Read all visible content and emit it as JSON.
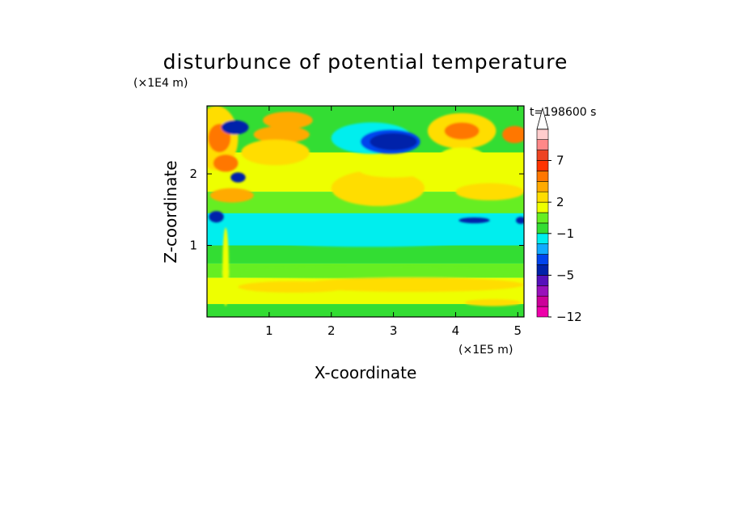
{
  "chart_data": {
    "type": "heatmap",
    "title": "disturbunce of potential temperature",
    "xlabel": "X-coordinate",
    "ylabel": "Z-coordinate",
    "x_unit": "(×1E5 m)",
    "y_unit": "(×1E4 m)",
    "time_label": "t=198600 s",
    "x_ticks": [
      1,
      2,
      3,
      4,
      5
    ],
    "y_ticks": [
      1,
      2
    ],
    "xlim": [
      0,
      5.1
    ],
    "ylim": [
      0,
      2.95
    ],
    "colorbar": {
      "tick_labels": [
        "7",
        "2",
        "−1",
        "−5",
        "−12"
      ],
      "levels": [
        -12,
        -10,
        -8,
        -7,
        -5,
        -4,
        -3,
        -2,
        -1,
        0,
        1,
        2,
        3,
        4,
        5,
        7,
        8,
        9
      ],
      "colors": [
        "#ee00aa",
        "#cc0099",
        "#9911bb",
        "#5511bb",
        "#0022aa",
        "#0044ee",
        "#11aaff",
        "#00eeee",
        "#33dd33",
        "#66ee22",
        "#eeff00",
        "#ffdd00",
        "#ffaa00",
        "#ff7700",
        "#ff3300",
        "#ee4422",
        "#ff8888",
        "#ffcccc"
      ],
      "extend": "max"
    },
    "colors": {
      "frame": "#000000",
      "background": "#00eeee"
    },
    "bands": [
      {
        "z0": 0.0,
        "z1": 0.18,
        "color": "#33dd33"
      },
      {
        "z0": 0.18,
        "z1": 0.55,
        "color": "#eeff00"
      },
      {
        "z0": 0.55,
        "z1": 0.75,
        "color": "#66ee22"
      },
      {
        "z0": 0.75,
        "z1": 1.0,
        "color": "#33dd33"
      },
      {
        "z0": 1.0,
        "z1": 1.45,
        "color": "#00eeee"
      },
      {
        "z0": 1.45,
        "z1": 1.75,
        "color": "#66ee22"
      },
      {
        "z0": 1.75,
        "z1": 2.3,
        "color": "#eeff00"
      },
      {
        "z0": 2.3,
        "z1": 2.95,
        "color": "#33dd33"
      }
    ],
    "blobs": [
      {
        "x": 0.15,
        "z": 2.5,
        "rx": 0.35,
        "rz": 0.45,
        "color": "#ffdd00"
      },
      {
        "x": 0.2,
        "z": 2.5,
        "rx": 0.18,
        "rz": 0.2,
        "color": "#ff7700"
      },
      {
        "x": 0.45,
        "z": 2.65,
        "rx": 0.22,
        "rz": 0.1,
        "color": "#0022aa"
      },
      {
        "x": 0.3,
        "z": 2.15,
        "rx": 0.2,
        "rz": 0.12,
        "color": "#ff7700"
      },
      {
        "x": 0.5,
        "z": 1.95,
        "rx": 0.12,
        "rz": 0.07,
        "color": "#0022aa"
      },
      {
        "x": 0.4,
        "z": 1.7,
        "rx": 0.35,
        "rz": 0.1,
        "color": "#ffaa00"
      },
      {
        "x": 1.2,
        "z": 2.55,
        "rx": 0.45,
        "rz": 0.12,
        "color": "#ffaa00"
      },
      {
        "x": 1.1,
        "z": 2.3,
        "rx": 0.55,
        "rz": 0.18,
        "color": "#ffdd00"
      },
      {
        "x": 1.3,
        "z": 2.75,
        "rx": 0.4,
        "rz": 0.12,
        "color": "#ffaa00"
      },
      {
        "x": 2.65,
        "z": 2.5,
        "rx": 0.65,
        "rz": 0.22,
        "color": "#00eeee"
      },
      {
        "x": 2.95,
        "z": 2.45,
        "rx": 0.48,
        "rz": 0.17,
        "color": "#0044ee"
      },
      {
        "x": 3.0,
        "z": 2.45,
        "rx": 0.38,
        "rz": 0.12,
        "color": "#0022aa"
      },
      {
        "x": 2.75,
        "z": 1.8,
        "rx": 0.75,
        "rz": 0.25,
        "color": "#ffdd00"
      },
      {
        "x": 3.0,
        "z": 2.05,
        "rx": 0.55,
        "rz": 0.1,
        "color": "#eeff00"
      },
      {
        "x": 4.1,
        "z": 2.6,
        "rx": 0.55,
        "rz": 0.25,
        "color": "#ffdd00"
      },
      {
        "x": 4.1,
        "z": 2.6,
        "rx": 0.28,
        "rz": 0.12,
        "color": "#ff7700"
      },
      {
        "x": 4.95,
        "z": 2.55,
        "rx": 0.2,
        "rz": 0.12,
        "color": "#ff7700"
      },
      {
        "x": 4.1,
        "z": 2.25,
        "rx": 0.35,
        "rz": 0.12,
        "color": "#eeff00"
      },
      {
        "x": 4.55,
        "z": 1.75,
        "rx": 0.55,
        "rz": 0.12,
        "color": "#ffdd00"
      },
      {
        "x": 0.15,
        "z": 1.4,
        "rx": 0.12,
        "rz": 0.08,
        "color": "#0022aa"
      },
      {
        "x": 4.3,
        "z": 1.35,
        "rx": 0.25,
        "rz": 0.04,
        "color": "#0022aa"
      },
      {
        "x": 5.05,
        "z": 1.35,
        "rx": 0.08,
        "rz": 0.05,
        "color": "#0022aa"
      },
      {
        "x": 2.6,
        "z": 1.1,
        "rx": 1.9,
        "rz": 0.12,
        "color": "#00eeee"
      },
      {
        "x": 2.6,
        "z": 0.62,
        "rx": 2.5,
        "rz": 0.08,
        "color": "#66ee22"
      },
      {
        "x": 3.3,
        "z": 0.45,
        "rx": 1.8,
        "rz": 0.1,
        "color": "#ffdd00"
      },
      {
        "x": 1.4,
        "z": 0.42,
        "rx": 0.9,
        "rz": 0.08,
        "color": "#ffdd00"
      },
      {
        "x": 4.6,
        "z": 0.2,
        "rx": 0.45,
        "rz": 0.05,
        "color": "#ffdd00"
      },
      {
        "x": 0.3,
        "z": 0.7,
        "rx": 0.05,
        "rz": 0.55,
        "color": "#eeff00"
      }
    ]
  }
}
